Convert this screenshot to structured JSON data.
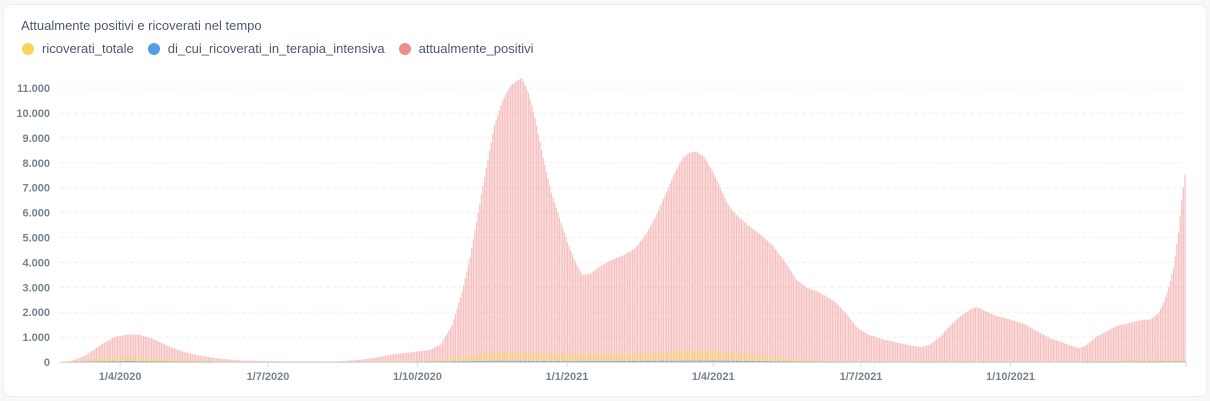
{
  "card": {
    "title": "Attualmente positivi e ricoverati nel tempo"
  },
  "chart_data": {
    "type": "bar",
    "title": "Attualmente positivi e ricoverati nel tempo",
    "xlabel": "",
    "ylabel": "",
    "x_start": "2020-02-24",
    "x_end": "2021-12-31",
    "ylim": [
      0,
      11500
    ],
    "grid": true,
    "legend_position": "top-left",
    "ytick_labels": [
      "0",
      "1.000",
      "2.000",
      "3.000",
      "4.000",
      "5.000",
      "6.000",
      "7.000",
      "8.000",
      "9.000",
      "10.000",
      "11.000"
    ],
    "xtick_labels": [
      {
        "date": "2020-04-01",
        "label": "1/4/2020"
      },
      {
        "date": "2020-07-01",
        "label": "1/7/2020"
      },
      {
        "date": "2020-10-01",
        "label": "1/10/2020"
      },
      {
        "date": "2021-01-01",
        "label": "1/1/2021"
      },
      {
        "date": "2021-04-01",
        "label": "1/4/2021"
      },
      {
        "date": "2021-07-01",
        "label": "1/7/2021"
      },
      {
        "date": "2021-10-01",
        "label": "1/10/2021"
      }
    ],
    "series": [
      {
        "name": "ricoverati_totale",
        "color": "#f9d45c",
        "points": [
          [
            "2020-02-24",
            0
          ],
          [
            "2020-03-10",
            80
          ],
          [
            "2020-03-25",
            200
          ],
          [
            "2020-04-05",
            230
          ],
          [
            "2020-04-25",
            150
          ],
          [
            "2020-05-20",
            40
          ],
          [
            "2020-06-15",
            10
          ],
          [
            "2020-08-15",
            5
          ],
          [
            "2020-09-25",
            20
          ],
          [
            "2020-10-10",
            60
          ],
          [
            "2020-10-25",
            200
          ],
          [
            "2020-11-10",
            350
          ],
          [
            "2020-11-20",
            400
          ],
          [
            "2020-12-10",
            380
          ],
          [
            "2021-01-01",
            320
          ],
          [
            "2021-02-15",
            320
          ],
          [
            "2021-03-15",
            450
          ],
          [
            "2021-04-01",
            440
          ],
          [
            "2021-04-20",
            350
          ],
          [
            "2021-05-15",
            150
          ],
          [
            "2021-06-10",
            40
          ],
          [
            "2021-07-15",
            15
          ],
          [
            "2021-08-20",
            50
          ],
          [
            "2021-09-20",
            30
          ],
          [
            "2021-11-01",
            20
          ],
          [
            "2021-12-05",
            50
          ],
          [
            "2021-12-20",
            90
          ],
          [
            "2021-12-31",
            130
          ]
        ]
      },
      {
        "name": "di_cui_ricoverati_in_terapia_intensiva",
        "color": "#509ee3",
        "points": [
          [
            "2020-02-24",
            0
          ],
          [
            "2020-03-25",
            30
          ],
          [
            "2020-04-05",
            40
          ],
          [
            "2020-05-10",
            15
          ],
          [
            "2020-06-15",
            2
          ],
          [
            "2020-09-25",
            3
          ],
          [
            "2020-11-20",
            50
          ],
          [
            "2021-01-01",
            35
          ],
          [
            "2021-04-01",
            55
          ],
          [
            "2021-06-10",
            8
          ],
          [
            "2021-08-20",
            8
          ],
          [
            "2021-11-01",
            4
          ],
          [
            "2021-12-31",
            18
          ]
        ]
      },
      {
        "name": "attualmente_positivi",
        "color": "#ef8c8c",
        "points": [
          [
            "2020-02-24",
            10
          ],
          [
            "2020-03-01",
            30
          ],
          [
            "2020-03-10",
            250
          ],
          [
            "2020-03-20",
            700
          ],
          [
            "2020-03-28",
            1000
          ],
          [
            "2020-04-05",
            1100
          ],
          [
            "2020-04-12",
            1100
          ],
          [
            "2020-04-20",
            950
          ],
          [
            "2020-04-30",
            650
          ],
          [
            "2020-05-10",
            400
          ],
          [
            "2020-05-20",
            250
          ],
          [
            "2020-06-01",
            130
          ],
          [
            "2020-06-15",
            60
          ],
          [
            "2020-07-10",
            30
          ],
          [
            "2020-08-10",
            20
          ],
          [
            "2020-08-25",
            80
          ],
          [
            "2020-09-05",
            180
          ],
          [
            "2020-09-15",
            300
          ],
          [
            "2020-09-25",
            380
          ],
          [
            "2020-10-01",
            430
          ],
          [
            "2020-10-08",
            480
          ],
          [
            "2020-10-15",
            700
          ],
          [
            "2020-10-22",
            1500
          ],
          [
            "2020-10-28",
            2800
          ],
          [
            "2020-11-02",
            4200
          ],
          [
            "2020-11-07",
            6000
          ],
          [
            "2020-11-12",
            7800
          ],
          [
            "2020-11-17",
            9500
          ],
          [
            "2020-11-22",
            10500
          ],
          [
            "2020-11-27",
            11100
          ],
          [
            "2020-12-01",
            11300
          ],
          [
            "2020-12-04",
            11400
          ],
          [
            "2020-12-08",
            10800
          ],
          [
            "2020-12-12",
            9800
          ],
          [
            "2020-12-17",
            8200
          ],
          [
            "2020-12-22",
            6800
          ],
          [
            "2020-12-27",
            5800
          ],
          [
            "2021-01-01",
            4800
          ],
          [
            "2021-01-06",
            4000
          ],
          [
            "2021-01-10",
            3500
          ],
          [
            "2021-01-15",
            3550
          ],
          [
            "2021-01-20",
            3800
          ],
          [
            "2021-01-28",
            4100
          ],
          [
            "2021-02-05",
            4300
          ],
          [
            "2021-02-12",
            4600
          ],
          [
            "2021-02-18",
            5100
          ],
          [
            "2021-02-24",
            5800
          ],
          [
            "2021-03-02",
            6700
          ],
          [
            "2021-03-08",
            7600
          ],
          [
            "2021-03-13",
            8200
          ],
          [
            "2021-03-17",
            8400
          ],
          [
            "2021-03-21",
            8450
          ],
          [
            "2021-03-26",
            8250
          ],
          [
            "2021-03-31",
            7700
          ],
          [
            "2021-04-05",
            7000
          ],
          [
            "2021-04-10",
            6300
          ],
          [
            "2021-04-15",
            5900
          ],
          [
            "2021-04-22",
            5500
          ],
          [
            "2021-04-30",
            5100
          ],
          [
            "2021-05-07",
            4700
          ],
          [
            "2021-05-15",
            4000
          ],
          [
            "2021-05-22",
            3300
          ],
          [
            "2021-05-28",
            3000
          ],
          [
            "2021-06-05",
            2800
          ],
          [
            "2021-06-15",
            2400
          ],
          [
            "2021-06-22",
            1900
          ],
          [
            "2021-06-28",
            1400
          ],
          [
            "2021-07-05",
            1100
          ],
          [
            "2021-07-15",
            900
          ],
          [
            "2021-07-25",
            750
          ],
          [
            "2021-08-01",
            650
          ],
          [
            "2021-08-07",
            600
          ],
          [
            "2021-08-12",
            700
          ],
          [
            "2021-08-18",
            1000
          ],
          [
            "2021-08-25",
            1500
          ],
          [
            "2021-09-01",
            1900
          ],
          [
            "2021-09-07",
            2150
          ],
          [
            "2021-09-10",
            2200
          ],
          [
            "2021-09-15",
            2050
          ],
          [
            "2021-09-22",
            1850
          ],
          [
            "2021-10-01",
            1700
          ],
          [
            "2021-10-10",
            1500
          ],
          [
            "2021-10-18",
            1200
          ],
          [
            "2021-10-25",
            950
          ],
          [
            "2021-11-01",
            800
          ],
          [
            "2021-11-07",
            650
          ],
          [
            "2021-11-12",
            550
          ],
          [
            "2021-11-17",
            700
          ],
          [
            "2021-11-22",
            1000
          ],
          [
            "2021-11-28",
            1200
          ],
          [
            "2021-12-05",
            1450
          ],
          [
            "2021-12-12",
            1550
          ],
          [
            "2021-12-18",
            1650
          ],
          [
            "2021-12-22",
            1700
          ],
          [
            "2021-12-25",
            1700
          ],
          [
            "2021-12-28",
            1800
          ],
          [
            "2021-12-31",
            2000
          ],
          [
            "2022-01-03",
            2400
          ],
          [
            "2022-01-06",
            3000
          ],
          [
            "2022-01-09",
            3800
          ],
          [
            "2022-01-12",
            5200
          ],
          [
            "2022-01-14",
            6500
          ],
          [
            "2022-01-16",
            7500
          ],
          [
            "2022-01-17",
            8450
          ]
        ]
      }
    ]
  }
}
